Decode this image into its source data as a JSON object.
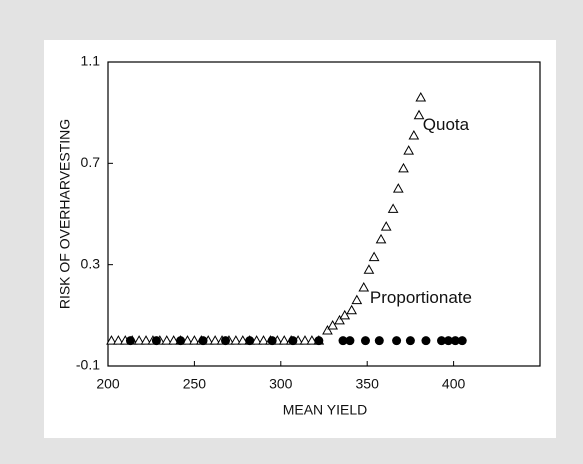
{
  "chart_data": {
    "type": "scatter",
    "x_label": "MEAN YIELD",
    "y_label": "RISK OF OVERHARVESTING",
    "xlim": [
      200,
      450
    ],
    "xticks": [
      200,
      250,
      300,
      350,
      400
    ],
    "ylim": [
      -0.1,
      1.1
    ],
    "yticks": [
      -0.1,
      0.3,
      0.7,
      1.1
    ],
    "series": [
      {
        "name": "Quota",
        "color": "#000000",
        "marker": "triangle",
        "x": [
          202,
          206,
          210,
          214,
          218,
          222,
          226,
          230,
          234,
          238,
          242,
          246,
          250,
          254,
          258,
          262,
          266,
          270,
          274,
          278,
          282,
          286,
          290,
          294,
          298,
          302,
          306,
          310,
          314,
          318,
          322,
          327,
          330,
          334,
          337,
          341,
          344,
          348,
          351,
          354,
          358,
          361,
          365,
          368,
          371,
          374,
          377,
          380,
          381
        ],
        "values": [
          0,
          0,
          0,
          0,
          0,
          0,
          0,
          0,
          0,
          0,
          0,
          0,
          0,
          0,
          0,
          0,
          0,
          0,
          0,
          0,
          0,
          0,
          0,
          0,
          0,
          0,
          0,
          0,
          0,
          0,
          0,
          0.04,
          0.06,
          0.08,
          0.1,
          0.12,
          0.16,
          0.21,
          0.28,
          0.33,
          0.4,
          0.45,
          0.52,
          0.6,
          0.68,
          0.75,
          0.81,
          0.89,
          0.96
        ]
      },
      {
        "name": "Proportionate",
        "color": "#000000",
        "marker": "circle",
        "x": [
          213,
          228,
          242,
          255,
          268,
          282,
          295,
          307,
          322,
          336,
          340,
          349,
          357,
          367,
          375,
          384,
          393,
          397,
          401,
          405
        ],
        "values": [
          0,
          0,
          0,
          0,
          0,
          0,
          0,
          0,
          0,
          0,
          0,
          0,
          0,
          0,
          0,
          0,
          0,
          0,
          0,
          0
        ]
      }
    ]
  }
}
